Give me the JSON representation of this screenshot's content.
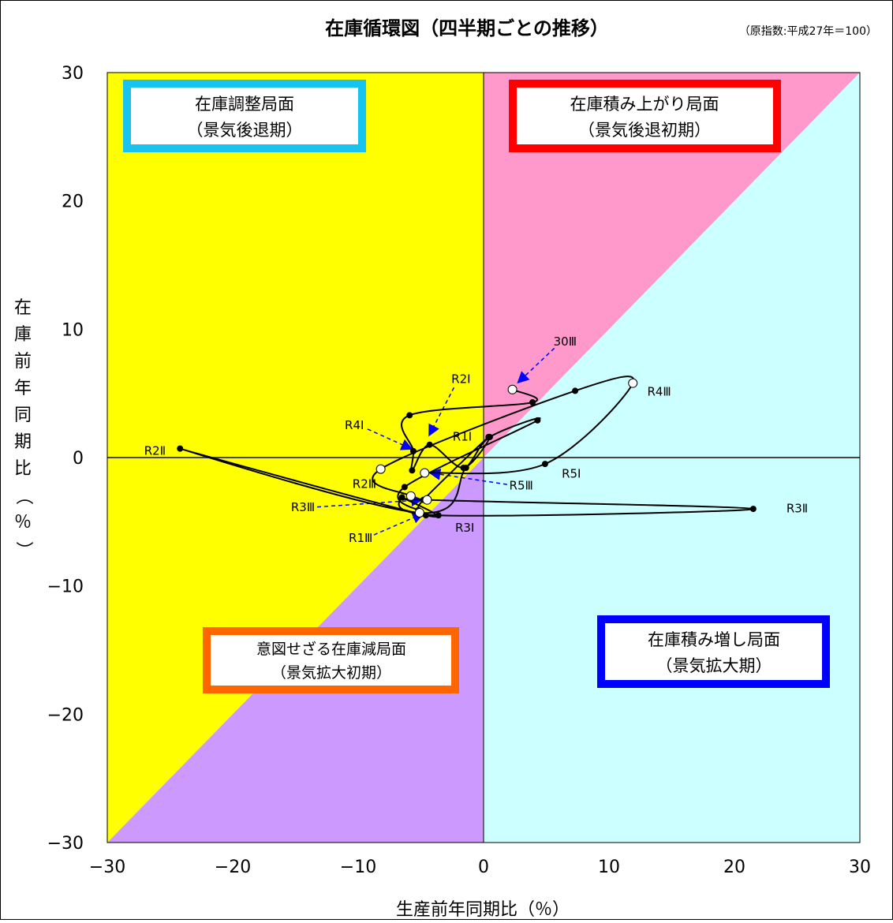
{
  "chart_data": {
    "type": "line",
    "title": "在庫循環図（四半期ごとの推移）",
    "subtitle": "（原指数:平成27年＝100）",
    "xlabel": "生産前年同期比（％）",
    "ylabel": "在庫前年同期比（％）",
    "xlim": [
      -30,
      30
    ],
    "ylim": [
      -30,
      30
    ],
    "x_ticks": [
      "−30",
      "−20",
      "−10",
      "0",
      "10",
      "20",
      "30"
    ],
    "y_ticks": [
      "30",
      "20",
      "10",
      "0",
      "−10",
      "−20",
      "−30"
    ],
    "grid": false,
    "series": [
      {
        "x": [
          2.3,
          3.9,
          -5.9,
          -5.6,
          -5.7,
          -4.3,
          -1.6,
          0.4,
          -4.8,
          -5.2,
          -6.3,
          4.3,
          0.5,
          -1.4,
          -5.1,
          -24.2,
          -4.6,
          -6.5,
          -3.6,
          21.5,
          -4.5,
          -5.8,
          -8.2,
          7.3,
          11.9,
          4.9,
          -4.7
        ],
        "y": [
          5.3,
          4.3,
          3.3,
          0.5,
          -1.0,
          1.0,
          -0.8,
          1.6,
          -3.3,
          -4.1,
          -2.3,
          2.9,
          1.6,
          -0.8,
          -4.3,
          0.7,
          -4.5,
          -3.1,
          -4.5,
          -4.0,
          -3.3,
          -3.0,
          -0.9,
          5.2,
          5.8,
          -0.5,
          -1.2
        ],
        "hollow_points": [
          0,
          14,
          20,
          21,
          22,
          24,
          26
        ]
      }
    ],
    "point_labels": [
      {
        "text": "30Ⅲ",
        "x": 6.5,
        "y": 9.0,
        "arrow_to": [
          2.8,
          5.9
        ]
      },
      {
        "text": "R1Ⅰ",
        "x": -1.7,
        "y": 1.6
      },
      {
        "text": "R1Ⅲ",
        "x": -9.8,
        "y": -6.3,
        "arrow_to": [
          -4.9,
          -4.4
        ]
      },
      {
        "text": "R2Ⅰ",
        "x": -1.8,
        "y": 6.1,
        "arrow_to": [
          -4.3,
          1.8
        ]
      },
      {
        "text": "R2Ⅱ",
        "x": -26.2,
        "y": 0.5
      },
      {
        "text": "R2Ⅲ",
        "x": -9.5,
        "y": -2.1
      },
      {
        "text": "R3Ⅰ",
        "x": -1.5,
        "y": -5.5
      },
      {
        "text": "R3Ⅱ",
        "x": 25.0,
        "y": -4.0
      },
      {
        "text": "R3Ⅲ",
        "x": -14.4,
        "y": -3.9,
        "arrow_to": [
          -5.0,
          -3.3
        ]
      },
      {
        "text": "R4Ⅰ",
        "x": -10.3,
        "y": 2.5,
        "arrow_to": [
          -5.8,
          0.7
        ]
      },
      {
        "text": "R4Ⅲ",
        "x": 14.0,
        "y": 5.1
      },
      {
        "text": "R5Ⅰ",
        "x": 7.0,
        "y": -1.3
      },
      {
        "text": "R5Ⅲ",
        "x": 3.0,
        "y": -2.2,
        "arrow_to": [
          -4.2,
          -1.2
        ]
      }
    ],
    "quadrants": [
      {
        "name": "在庫調整局面",
        "sub": "（景気後退期）",
        "fill": "#FFFF00",
        "border": "#19C3F0"
      },
      {
        "name": "在庫積み上がり局面",
        "sub": "（景気後退初期）",
        "fill": "#FF99CC",
        "border": "#FF0000"
      },
      {
        "name": "意図せざる在庫減局面",
        "sub": "（景気拡大初期）",
        "fill": "#CC99FF",
        "border": "#FF6600"
      },
      {
        "name": "在庫積み増し局面",
        "sub": "（景気拡大期）",
        "fill": "#CCFFFF",
        "border": "#0000FF"
      }
    ]
  }
}
